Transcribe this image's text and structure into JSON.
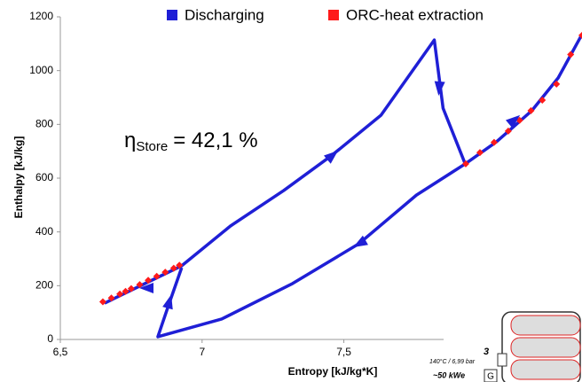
{
  "chart_data": {
    "type": "line",
    "x_label": "Entropy [kJ/kg*K]",
    "y_label": "Enthalpy [kJ/kg]",
    "annotation": {
      "symbol": "η",
      "subscript": "Store",
      "text": "= 42,1 %"
    },
    "xlim": [
      6.5,
      8.34
    ],
    "ylim": [
      0,
      1200
    ],
    "xticks": [
      {
        "value": 6.5,
        "label": "6,5"
      },
      7,
      {
        "value": 7.5,
        "label": "7,5"
      }
    ],
    "yticks": [
      0,
      200,
      400,
      600,
      800,
      1000,
      1200
    ],
    "grid": false,
    "legend": "top",
    "series": [
      {
        "name": "Discharging",
        "color": "#1f1fd6",
        "mode": "line",
        "x": [
          6.656,
          6.928,
          7.1,
          7.288,
          7.459,
          7.631,
          7.819,
          7.85,
          7.928,
          7.756,
          7.553,
          7.319,
          7.069,
          6.844,
          6.881,
          6.928,
          null,
          7.928,
          8.038,
          8.163,
          8.256,
          8.338
        ],
        "values": [
          135,
          274,
          422,
          554,
          686,
          834,
          1114,
          860,
          653,
          537,
          356,
          208,
          76,
          10,
          125,
          267,
          null,
          653,
          735,
          851,
          973,
          1131
        ]
      },
      {
        "name": "ORC-heat extraction",
        "color": "#ff1a1a",
        "mode": "markers",
        "x": [
          6.65,
          6.68,
          6.71,
          6.73,
          6.75,
          6.78,
          6.81,
          6.84,
          6.87,
          6.9,
          6.92,
          7.93,
          7.98,
          8.03,
          8.08,
          8.12,
          8.16,
          8.2,
          8.25,
          8.3,
          8.34
        ],
        "values": [
          140,
          154,
          169,
          179,
          189,
          204,
          220,
          235,
          250,
          265,
          276,
          653,
          695,
          733,
          775,
          815,
          851,
          890,
          950,
          1060,
          1131
        ]
      }
    ]
  },
  "inset": {
    "stage": "3",
    "condition": "140°C / 6,99 bar",
    "power": "~50 kWe",
    "generator": "G"
  }
}
